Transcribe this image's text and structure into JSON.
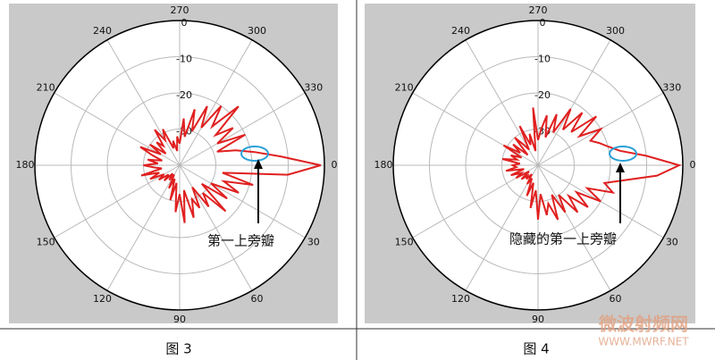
{
  "chart_data": [
    {
      "type": "polar",
      "annotation": "第一上旁瓣",
      "caption": "图 3",
      "color": "#e02020",
      "thetaticks": [
        0,
        30,
        60,
        90,
        120,
        150,
        180,
        210,
        240,
        270,
        300,
        330
      ],
      "rlim": [
        -40,
        0
      ],
      "rticks": [
        0,
        -10,
        -20,
        -30
      ],
      "theta": [
        0,
        5,
        10,
        15,
        20,
        25,
        30,
        35,
        40,
        45,
        50,
        55,
        60,
        65,
        70,
        75,
        80,
        85,
        90,
        95,
        100,
        105,
        110,
        115,
        120,
        125,
        130,
        135,
        140,
        145,
        150,
        155,
        160,
        165,
        170,
        175,
        180,
        185,
        190,
        195,
        200,
        205,
        210,
        215,
        220,
        225,
        230,
        235,
        240,
        245,
        250,
        255,
        260,
        265,
        270,
        275,
        280,
        285,
        290,
        295,
        300,
        305,
        310,
        315,
        320,
        325,
        330,
        335,
        340,
        345,
        350,
        355
      ],
      "values": [
        -1,
        -10,
        -28,
        -19,
        -27,
        -22,
        -30,
        -24,
        -32,
        -22,
        -30,
        -26,
        -33,
        -27,
        -30,
        -25,
        -33,
        -24,
        -32,
        -27,
        -35,
        -30,
        -36,
        -33,
        -37,
        -35,
        -37,
        -34,
        -36,
        -33,
        -35,
        -31,
        -34,
        -29,
        -35,
        -33,
        -30,
        -34,
        -31,
        -35,
        -32,
        -28,
        -34,
        -30,
        -35,
        -31,
        -33,
        -28,
        -32,
        -29,
        -35,
        -33,
        -36,
        -32,
        -34,
        -27,
        -32,
        -24,
        -30,
        -22,
        -28,
        -20,
        -26,
        -17,
        -27,
        -22,
        -28,
        -20,
        -29,
        -24,
        -19,
        -12
      ]
    },
    {
      "type": "polar",
      "annotation": "隐藏的第一上旁瓣",
      "caption": "图 4",
      "color": "#e02020",
      "thetaticks": [
        0,
        30,
        60,
        90,
        120,
        150,
        180,
        210,
        240,
        270,
        300,
        330
      ],
      "rlim": [
        -40,
        0
      ],
      "rticks": [
        0,
        -10,
        -20,
        -30
      ],
      "theta": [
        0,
        5,
        10,
        15,
        20,
        25,
        30,
        35,
        40,
        45,
        50,
        55,
        60,
        65,
        70,
        75,
        80,
        85,
        90,
        95,
        100,
        105,
        110,
        115,
        120,
        125,
        130,
        135,
        140,
        145,
        150,
        155,
        160,
        165,
        170,
        175,
        180,
        185,
        190,
        195,
        200,
        205,
        210,
        215,
        220,
        225,
        230,
        235,
        240,
        245,
        250,
        255,
        260,
        265,
        270,
        275,
        280,
        285,
        290,
        295,
        300,
        305,
        310,
        315,
        320,
        325,
        330,
        335,
        340,
        345,
        350,
        355
      ],
      "values": [
        -1,
        -7,
        -16,
        -21,
        -18,
        -25,
        -20,
        -27,
        -22,
        -28,
        -23,
        -30,
        -25,
        -31,
        -24,
        -29,
        -26,
        -32,
        -25,
        -33,
        -28,
        -35,
        -31,
        -36,
        -34,
        -37,
        -35,
        -36,
        -34,
        -37,
        -33,
        -35,
        -32,
        -36,
        -31,
        -34,
        -33,
        -35,
        -30,
        -34,
        -32,
        -35,
        -29,
        -34,
        -31,
        -36,
        -30,
        -33,
        -35,
        -28,
        -34,
        -31,
        -36,
        -24,
        -33,
        -30,
        -26,
        -32,
        -25,
        -30,
        -22,
        -28,
        -21,
        -27,
        -19,
        -26,
        -20,
        -24,
        -22,
        -20,
        -17,
        -10
      ]
    }
  ],
  "watermark": {
    "title": "微波射频网",
    "url": "WWW.MWRF.NET"
  }
}
